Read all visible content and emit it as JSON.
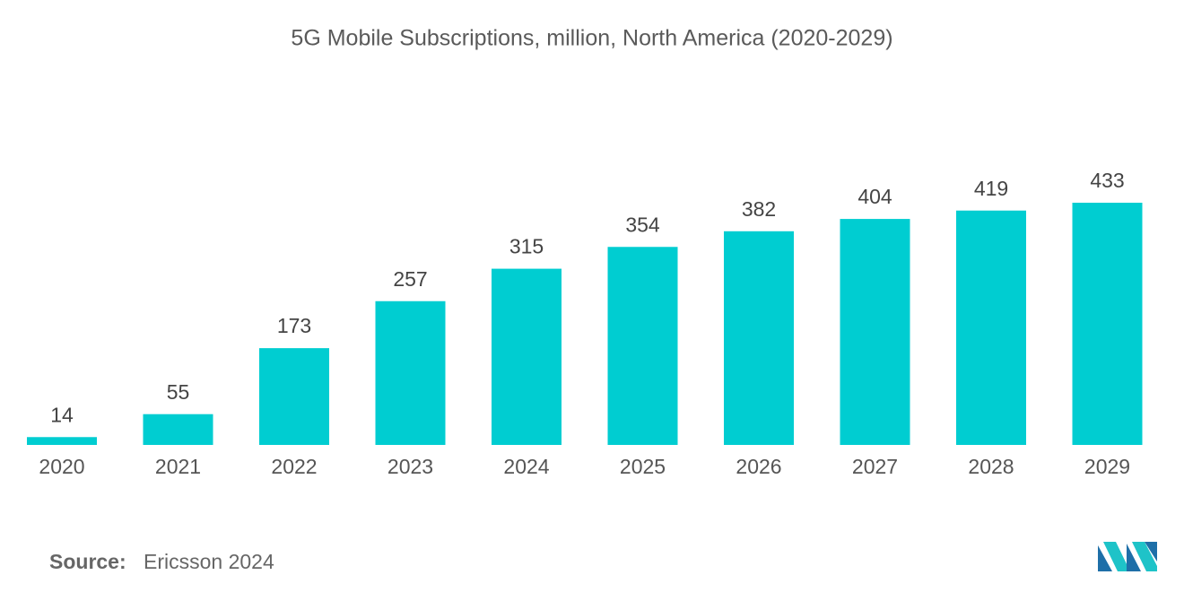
{
  "chart_data": {
    "type": "bar",
    "title": "5G Mobile Subscriptions, million, North America (2020-2029)",
    "categories": [
      "2020",
      "2021",
      "2022",
      "2023",
      "2024",
      "2025",
      "2026",
      "2027",
      "2028",
      "2029"
    ],
    "values": [
      14,
      55,
      173,
      257,
      315,
      354,
      382,
      404,
      419,
      433
    ],
    "color": "#00cdd1",
    "source_label": "Source:",
    "source": "Ericsson 2024"
  }
}
